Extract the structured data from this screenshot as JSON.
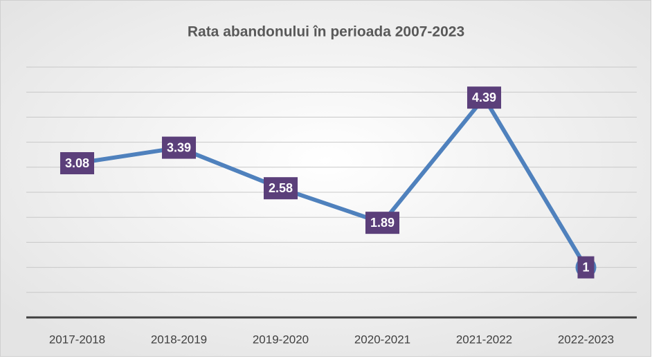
{
  "chart_data": {
    "type": "line",
    "title": "Rata abandonului în perioada 2007-2023",
    "categories": [
      "2017-2018",
      "2018-2019",
      "2019-2020",
      "2020-2021",
      "2021-2022",
      "2022-2023"
    ],
    "series": [
      {
        "name": "Rata abandonului",
        "color": "#4f81bd",
        "values": [
          3.08,
          3.39,
          2.58,
          1.89,
          4.39,
          1
        ]
      }
    ],
    "ylim": [
      0,
      5
    ],
    "yticks": [
      0,
      0.5,
      1,
      1.5,
      2,
      2.5,
      3,
      3.5,
      4,
      4.5,
      5
    ],
    "grid": true,
    "show_y_tick_labels": false,
    "label_color": "#5b3f7a"
  }
}
